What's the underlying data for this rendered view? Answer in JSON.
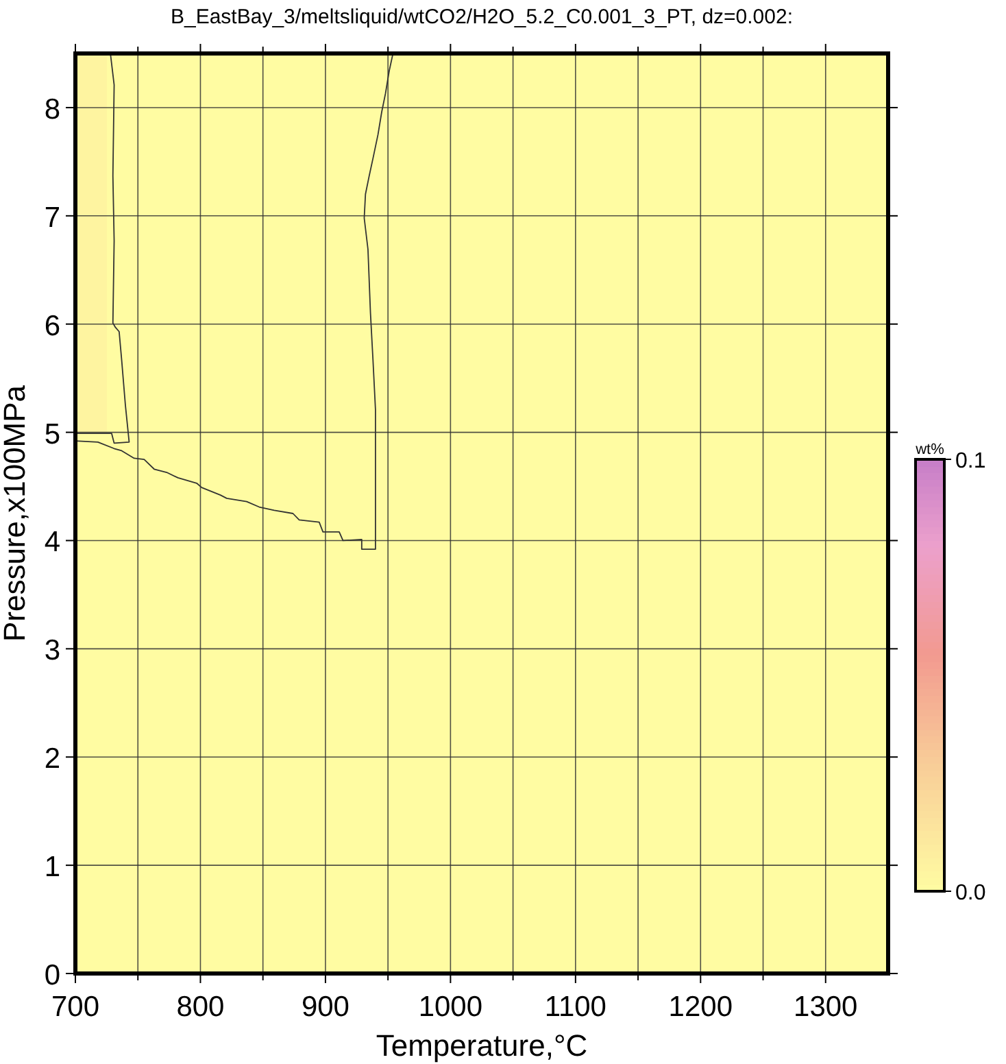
{
  "chart_data": {
    "type": "heatmap",
    "title": "B_EastBay_3/meltsliquid/wtCO2/H2O_5.2_C0.001_3_PT, dz=0.002:",
    "xlabel": "Temperature,°C",
    "ylabel": "Pressure,x100MPa",
    "clabel": "wt%",
    "xlim": [
      700,
      1350
    ],
    "ylim": [
      0,
      8.5
    ],
    "xticks": [
      700,
      {
        "value": 750,
        "label": null
      },
      800,
      {
        "value": 850,
        "label": null
      },
      900,
      {
        "value": 950,
        "label": null
      },
      1000,
      {
        "value": 1050,
        "label": null
      },
      1100,
      {
        "value": 1150,
        "label": null
      },
      1200,
      {
        "value": 1250,
        "label": null
      },
      1300
    ],
    "yticks": [
      0,
      1,
      2,
      3,
      4,
      5,
      6,
      7,
      8
    ],
    "grid": true,
    "clim": [
      0,
      0.1
    ],
    "cticks": [
      {
        "value": 0,
        "label": "0.0"
      },
      {
        "value": 0.1,
        "label": "0.1"
      }
    ],
    "cells": [
      [
        0.005,
        0,
        0,
        0,
        0,
        0,
        0,
        0,
        0,
        0,
        0,
        0,
        0,
        0,
        0,
        0,
        0,
        0,
        0,
        0,
        0,
        0,
        0,
        0,
        0,
        0
      ],
      [
        0.005,
        0,
        0,
        0,
        0,
        0,
        0,
        0,
        0,
        0,
        0,
        0,
        0,
        0,
        0,
        0,
        0,
        0,
        0,
        0,
        0,
        0,
        0,
        0,
        0,
        0
      ],
      [
        0.005,
        0,
        0,
        0,
        0,
        0,
        0,
        0,
        0,
        0,
        0,
        0,
        0,
        0,
        0,
        0,
        0,
        0,
        0,
        0,
        0,
        0,
        0,
        0,
        0,
        0
      ],
      [
        0.005,
        0,
        0,
        0,
        0,
        0,
        0,
        0,
        0,
        0,
        0,
        0,
        0,
        0,
        0,
        0,
        0,
        0,
        0,
        0,
        0,
        0,
        0,
        0,
        0,
        0
      ],
      [
        0.005,
        0,
        0,
        0,
        0,
        0,
        0,
        0,
        0,
        0,
        0,
        0,
        0,
        0,
        0,
        0,
        0,
        0,
        0,
        0,
        0,
        0,
        0,
        0,
        0,
        0
      ],
      [
        0.005,
        0,
        0,
        0,
        0,
        0,
        0,
        0,
        0,
        0,
        0,
        0,
        0,
        0,
        0,
        0,
        0,
        0,
        0,
        0,
        0,
        0,
        0,
        0,
        0,
        0
      ],
      [
        0.005,
        0,
        0,
        0,
        0,
        0,
        0,
        0,
        0,
        0,
        0,
        0,
        0,
        0,
        0,
        0,
        0,
        0,
        0,
        0,
        0,
        0,
        0,
        0,
        0,
        0
      ],
      [
        0,
        0,
        0,
        0,
        0,
        0,
        0,
        0,
        0,
        0,
        0,
        0,
        0,
        0,
        0,
        0,
        0,
        0,
        0,
        0,
        0,
        0,
        0,
        0,
        0,
        0
      ],
      [
        0,
        0,
        0,
        0,
        0,
        0,
        0,
        0,
        0,
        0,
        0,
        0,
        0,
        0,
        0,
        0,
        0,
        0,
        0,
        0,
        0,
        0,
        0,
        0,
        0,
        0
      ],
      [
        0,
        0,
        0,
        0,
        0,
        0,
        0,
        0,
        0,
        0,
        0,
        0,
        0,
        0,
        0,
        0,
        0,
        0,
        0,
        0,
        0,
        0,
        0,
        0,
        0,
        0
      ],
      [
        0,
        0,
        0,
        0,
        0,
        0,
        0,
        0,
        0,
        0,
        0,
        0,
        0,
        0,
        0,
        0,
        0,
        0,
        0,
        0,
        0,
        0,
        0,
        0,
        0,
        0
      ],
      [
        0,
        0,
        0,
        0,
        0,
        0,
        0,
        0,
        0,
        0,
        0,
        0,
        0,
        0,
        0,
        0,
        0,
        0,
        0,
        0,
        0,
        0,
        0,
        0,
        0,
        0
      ],
      [
        0,
        0,
        0,
        0,
        0,
        0,
        0,
        0,
        0,
        0,
        0,
        0,
        0,
        0,
        0,
        0,
        0,
        0,
        0,
        0,
        0,
        0,
        0,
        0,
        0,
        0
      ],
      [
        0,
        0,
        0,
        0,
        0,
        0,
        0,
        0,
        0,
        0,
        0,
        0,
        0,
        0,
        0,
        0,
        0,
        0,
        0,
        0,
        0,
        0,
        0,
        0,
        0,
        0
      ],
      [
        0,
        0,
        0,
        0,
        0,
        0,
        0,
        0,
        0,
        0,
        0,
        0,
        0,
        0,
        0,
        0,
        0,
        0,
        0,
        0,
        0,
        0,
        0,
        0,
        0,
        0
      ],
      [
        0,
        0,
        0,
        0,
        0,
        0,
        0,
        0,
        0,
        0,
        0,
        0,
        0,
        0,
        0,
        0,
        0,
        0,
        0,
        0,
        0,
        0,
        0,
        0,
        0,
        0
      ],
      [
        0,
        0,
        0,
        0,
        0,
        0,
        0,
        0,
        0,
        0,
        0,
        0,
        0,
        0,
        0,
        0,
        0,
        0,
        0,
        0,
        0,
        0,
        0,
        0,
        0,
        0
      ]
    ],
    "series": [
      {
        "type": "line",
        "color": "#333333",
        "x": [
          728,
          731,
          730,
          731,
          730,
          732,
          735,
          737,
          740,
          743,
          731,
          729,
          700
        ],
        "values": [
          8.5,
          8.21,
          7.37,
          6.77,
          6.01,
          5.97,
          5.93,
          5.67,
          5.25,
          4.91,
          4.9,
          4.99,
          4.99
        ]
      },
      {
        "type": "line",
        "color": "#333333",
        "x": [
          700,
          718,
          731,
          737,
          747,
          755,
          763,
          773,
          782,
          797,
          801,
          816,
          821,
          837,
          847,
          859,
          874,
          879,
          895,
          898,
          911,
          914,
          929,
          929,
          940,
          940,
          938,
          936,
          934,
          931,
          932,
          935,
          938,
          942,
          945,
          948,
          951,
          954
        ],
        "values": [
          4.92,
          4.91,
          4.85,
          4.83,
          4.76,
          4.75,
          4.66,
          4.63,
          4.58,
          4.53,
          4.49,
          4.42,
          4.39,
          4.36,
          4.31,
          4.28,
          4.25,
          4.19,
          4.17,
          4.08,
          4.08,
          4.0,
          4.01,
          3.92,
          3.92,
          5.21,
          5.67,
          6.1,
          6.69,
          6.98,
          7.2,
          7.37,
          7.53,
          7.75,
          7.96,
          8.13,
          8.34,
          8.5
        ]
      }
    ]
  }
}
